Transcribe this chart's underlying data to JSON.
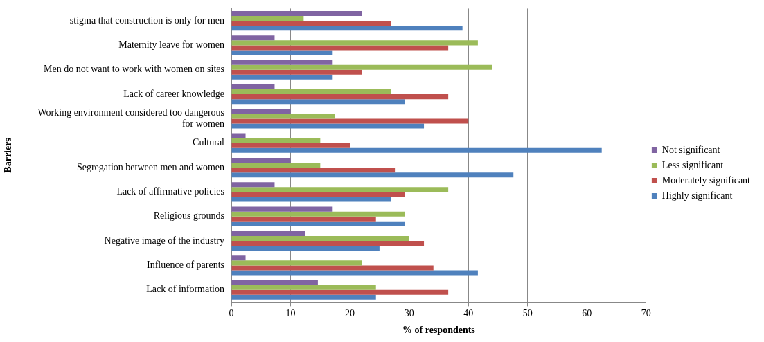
{
  "chart_data": {
    "type": "bar",
    "orientation": "horizontal",
    "xlabel": "% of respondents",
    "ylabel": "Barriers",
    "categories": [
      "stigma that construction is only for men",
      "Maternity leave for women",
      "Men do not want to work with women on sites",
      "Lack of career knowledge",
      "Working environment considered too dangerous for women",
      "Cultural",
      "Segregation between men and women",
      "Lack of affirmative policies",
      "Religious grounds",
      "Negative image of the industry",
      "Influence of parents",
      "Lack of information"
    ],
    "series": [
      {
        "name": "Not significant",
        "color": "#8064a2",
        "values": [
          22,
          7.3,
          17.1,
          7.3,
          10,
          2.4,
          10,
          7.3,
          17.1,
          12.5,
          2.4,
          14.6
        ]
      },
      {
        "name": "Less significant",
        "color": "#9bbb59",
        "values": [
          12.2,
          41.6,
          44,
          26.9,
          17.5,
          15,
          15,
          36.6,
          29.3,
          30,
          22,
          24.4
        ]
      },
      {
        "name": "Moderately significant",
        "color": "#c0504d",
        "values": [
          26.9,
          36.6,
          22,
          36.6,
          40,
          20,
          27.6,
          29.3,
          24.4,
          32.5,
          34.1,
          36.6
        ]
      },
      {
        "name": "Highly significant",
        "color": "#4f81bd",
        "values": [
          39,
          17.1,
          17.1,
          29.3,
          32.5,
          62.5,
          47.6,
          26.9,
          29.3,
          25,
          41.6,
          24.4
        ]
      }
    ],
    "xlim": [
      0,
      70
    ],
    "xticks": [
      0,
      10,
      20,
      30,
      40,
      50,
      60,
      70
    ],
    "grid": "x",
    "legend": "right"
  }
}
